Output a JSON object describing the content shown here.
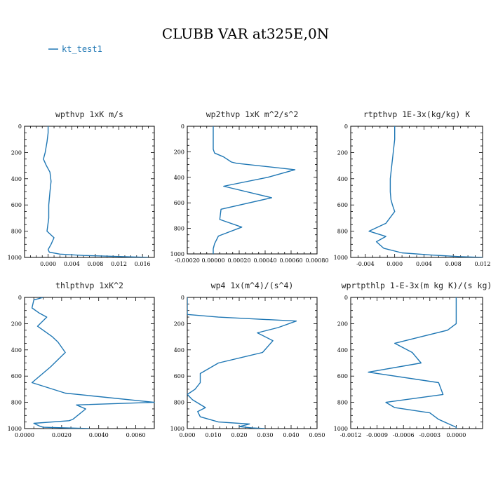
{
  "figure_title": "CLUBB VAR at325E,0N",
  "legend": {
    "label": "kt_test1",
    "color": "#1f77b4"
  },
  "chart_data": [
    {
      "type": "line",
      "title": "wpthvp   1xK m/s",
      "xlim": [
        -0.004,
        0.018
      ],
      "xticks": [
        0.0,
        0.004,
        0.008,
        0.012,
        0.016
      ],
      "xticklabels": [
        "0.000",
        "0.004",
        "0.008",
        "0.012",
        "0.016"
      ],
      "ylim": [
        0,
        1000
      ],
      "yticks": [
        0,
        200,
        400,
        600,
        800,
        1000
      ],
      "yticklabels": [
        "0",
        "200",
        "400",
        "600",
        "800",
        "1000"
      ],
      "series": [
        {
          "x": [
            0.0,
            0.0,
            -0.0002,
            -0.0005,
            -0.0008,
            -0.0003,
            0.0003,
            0.0005,
            0.0003,
            0.0001,
            0.0001,
            -0.0002,
            0.001,
            0.0005,
            0.0,
            0.0002,
            0.002,
            0.006,
            0.012,
            0.017
          ],
          "y": [
            0,
            50,
            120,
            200,
            250,
            300,
            350,
            420,
            500,
            600,
            700,
            800,
            850,
            900,
            940,
            960,
            975,
            985,
            993,
            1000
          ]
        }
      ]
    },
    {
      "type": "line",
      "title": "wp2thvp   1xK m^2/s^2",
      "xlim": [
        -0.0002,
        0.0008
      ],
      "xticks": [
        -0.0002,
        0.0,
        0.0002,
        0.0004,
        0.0006,
        0.0008
      ],
      "xticklabels": [
        "-0.00020",
        "0.00000",
        "0.00020",
        "0.00040",
        "0.00060",
        "0.00080"
      ],
      "ylim": [
        0,
        1000
      ],
      "yticks": [
        0,
        200,
        400,
        600,
        800,
        1000
      ],
      "yticklabels": [
        "0",
        "200",
        "400",
        "600",
        "800",
        "1000"
      ],
      "series": [
        {
          "x": [
            0.0,
            0.0,
            0.0,
            1e-05,
            8e-05,
            0.00014,
            0.00018,
            0.00063,
            0.00042,
            8e-05,
            0.00045,
            6e-05,
            5e-05,
            0.00022,
            4e-05,
            1e-05,
            0.0,
            0.0
          ],
          "y": [
            0,
            100,
            180,
            210,
            240,
            280,
            290,
            340,
            400,
            470,
            560,
            650,
            730,
            790,
            860,
            920,
            960,
            1000
          ]
        }
      ]
    },
    {
      "type": "line",
      "title": "rtpthvp   1E-3x(kg/kg) K",
      "xlim": [
        -0.006,
        0.012
      ],
      "xticks": [
        -0.004,
        0.0,
        0.004,
        0.008,
        0.012
      ],
      "xticklabels": [
        "-0.004",
        "0.000",
        "0.004",
        "0.008",
        "0.012"
      ],
      "ylim": [
        0,
        1000
      ],
      "yticks": [
        0,
        200,
        400,
        600,
        800,
        1000
      ],
      "yticklabels": [
        "0",
        "200",
        "400",
        "600",
        "800",
        "1000"
      ],
      "series": [
        {
          "x": [
            0.0,
            0.0,
            -0.0002,
            -0.0004,
            -0.0006,
            -0.0006,
            -0.0005,
            -0.0003,
            0.0,
            -0.0012,
            -0.0035,
            -0.0012,
            -0.0025,
            -0.0015,
            0.001,
            0.005,
            0.009,
            0.012
          ],
          "y": [
            0,
            100,
            200,
            300,
            400,
            500,
            560,
            600,
            650,
            740,
            800,
            840,
            880,
            930,
            965,
            982,
            994,
            1000
          ]
        }
      ]
    },
    {
      "type": "line",
      "title": "thlpthvp   1xK^2",
      "xlim": [
        0.0,
        0.007
      ],
      "xticks": [
        0.0,
        0.002,
        0.004,
        0.006
      ],
      "xticklabels": [
        "0.0000",
        "0.0020",
        "0.0040",
        "0.0060"
      ],
      "ylim": [
        0,
        1000
      ],
      "yticks": [
        0,
        200,
        400,
        600,
        800,
        1000
      ],
      "yticklabels": [
        "0",
        "200",
        "400",
        "600",
        "800",
        "1000"
      ],
      "series": [
        {
          "x": [
            0.001,
            0.0005,
            0.0004,
            0.0008,
            0.0012,
            0.0007,
            0.0015,
            0.0018,
            0.0022,
            0.0014,
            0.0004,
            0.0022,
            0.007,
            0.0028,
            0.0033,
            0.0026,
            0.0024,
            0.0005,
            0.0008,
            0.001,
            0.0035
          ],
          "y": [
            0,
            20,
            80,
            120,
            150,
            220,
            300,
            340,
            420,
            530,
            650,
            730,
            800,
            820,
            850,
            930,
            940,
            960,
            980,
            990,
            1000
          ]
        }
      ]
    },
    {
      "type": "line",
      "title": "wp4   1x(m^4)/(s^4)",
      "xlim": [
        0.0,
        0.05
      ],
      "xticks": [
        0.0,
        0.01,
        0.02,
        0.03,
        0.04,
        0.05
      ],
      "xticklabels": [
        "0.000",
        "0.010",
        "0.020",
        "0.030",
        "0.040",
        "0.050"
      ],
      "ylim": [
        0,
        1000
      ],
      "yticks": [
        0,
        200,
        400,
        600,
        800,
        1000
      ],
      "yticklabels": [
        "0",
        "200",
        "400",
        "600",
        "800",
        "1000"
      ],
      "series": [
        {
          "x": [
            0.0,
            0.0,
            0.0,
            0.0,
            0.012,
            0.042,
            0.035,
            0.027,
            0.033,
            0.029,
            0.012,
            0.005,
            0.005,
            0.003,
            0.0,
            0.002,
            0.007,
            0.004,
            0.005,
            0.012,
            0.024,
            0.02,
            0.025,
            0.03
          ],
          "y": [
            0,
            40,
            80,
            130,
            150,
            180,
            230,
            270,
            330,
            420,
            500,
            580,
            650,
            700,
            740,
            780,
            840,
            870,
            910,
            950,
            965,
            985,
            995,
            1000
          ]
        }
      ]
    },
    {
      "type": "line",
      "title": "wprtpthlp   1-E-3x(m kg K)/(s kg)",
      "xlim": [
        -0.0012,
        0.0003
      ],
      "xticks": [
        -0.0012,
        -0.0009,
        -0.0006,
        -0.0003,
        0.0
      ],
      "xticklabels": [
        "-0.0012",
        "-0.0009",
        "-0.0006",
        "-0.0003",
        "0.0000"
      ],
      "ylim": [
        0,
        1000
      ],
      "yticks": [
        0,
        200,
        400,
        600,
        800,
        1000
      ],
      "yticklabels": [
        "0",
        "200",
        "400",
        "600",
        "800",
        "1000"
      ],
      "series": [
        {
          "x": [
            0.0,
            0.0,
            0.0,
            -0.0001,
            -0.0004,
            -0.0007,
            -0.0005,
            -0.0004,
            -0.001,
            -0.0002,
            -0.00015,
            -0.0008,
            -0.0007,
            -0.0003,
            -0.0002,
            0.0,
            0.0
          ],
          "y": [
            0,
            100,
            200,
            250,
            300,
            350,
            420,
            500,
            570,
            650,
            740,
            800,
            840,
            880,
            930,
            990,
            1000
          ]
        }
      ]
    }
  ]
}
